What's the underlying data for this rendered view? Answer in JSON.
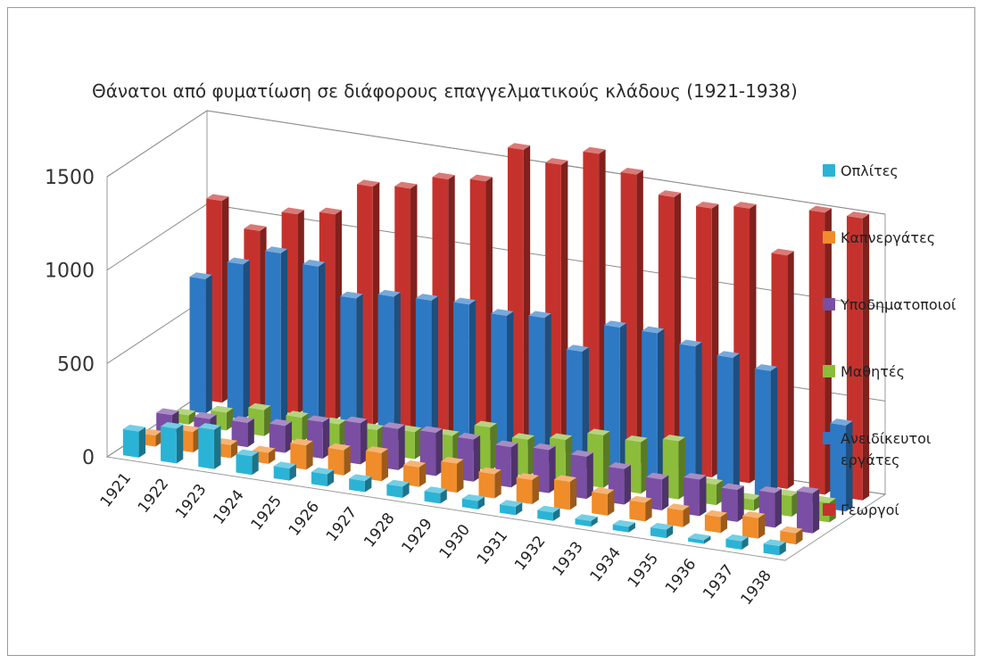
{
  "chart_data": {
    "type": "bar",
    "title": "Θάνατοι από φυματίωση σε διάφορους επαγγελματικούς κλάδους (1921-1938)",
    "categories": [
      "1921",
      "1922",
      "1923",
      "1924",
      "1925",
      "1926",
      "1927",
      "1928",
      "1929",
      "1930",
      "1931",
      "1932",
      "1933",
      "1934",
      "1935",
      "1936",
      "1937",
      "1938"
    ],
    "ylim": [
      0,
      1500
    ],
    "yticks": [
      "0",
      "500",
      "1000",
      "1500"
    ],
    "grid": true,
    "legend_position": "right",
    "series": [
      {
        "name": "Οπλίτες",
        "color": "#2bb3d6",
        "values": [
          140,
          185,
          210,
          100,
          65,
          65,
          60,
          60,
          55,
          45,
          45,
          45,
          30,
          30,
          45,
          20,
          45,
          50
        ]
      },
      {
        "name": "Καπνεργάτες",
        "color": "#f08c2a",
        "values": [
          60,
          110,
          70,
          60,
          130,
          135,
          150,
          105,
          155,
          130,
          130,
          150,
          115,
          100,
          90,
          85,
          110,
          60
        ]
      },
      {
        "name": "Υποδηματοποιοί",
        "color": "#7a4ea3",
        "values": [
          110,
          120,
          130,
          145,
          195,
          220,
          220,
          230,
          225,
          215,
          230,
          225,
          190,
          165,
          195,
          170,
          185,
          215
        ]
      },
      {
        "name": "Μαθητές",
        "color": "#8bbd3a",
        "values": [
          50,
          95,
          140,
          130,
          125,
          125,
          145,
          155,
          230,
          195,
          225,
          280,
          275,
          310,
          110,
          60,
          110,
          105
        ]
      },
      {
        "name": "Ανειδίκευτοι εργάτες",
        "color": "#2e79c4",
        "values": [
          720,
          830,
          920,
          880,
          740,
          780,
          790,
          800,
          770,
          790,
          640,
          800,
          800,
          760,
          730,
          690,
          35,
          460
        ]
      },
      {
        "name": "Γεωργοί",
        "color": "#c5322d",
        "values": [
          1080,
          950,
          1070,
          1100,
          1280,
          1300,
          1380,
          1400,
          1600,
          1550,
          1640,
          1560,
          1470,
          1440,
          1470,
          1250,
          1510,
          1510
        ]
      }
    ]
  }
}
